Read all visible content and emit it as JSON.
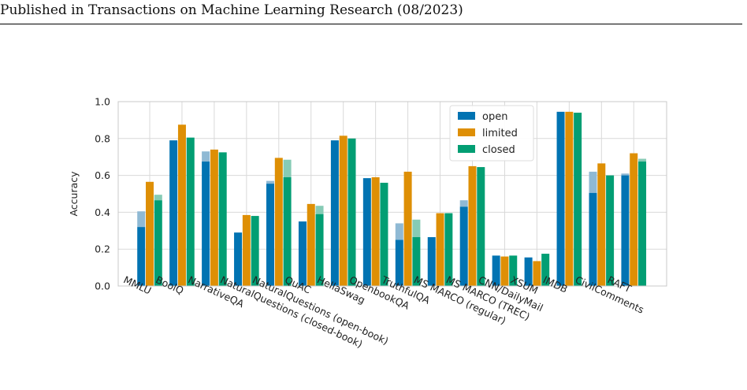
{
  "header": {
    "text": "Published in Transactions on Machine Learning Research (08/2023)"
  },
  "chart_data": {
    "type": "bar",
    "ylabel": "Accuracy",
    "xlabel": "",
    "ylim": [
      0.0,
      1.0
    ],
    "yticks": [
      "0.0",
      "0.2",
      "0.4",
      "0.6",
      "0.8",
      "1.0"
    ],
    "grid": true,
    "legend_position": "top-right",
    "categories": [
      "MMLU",
      "BoolQ",
      "NarrativeQA",
      "NaturalQuestions (closed-book)",
      "NaturalQuestions (open-book)",
      "QuAC",
      "HellaSwag",
      "OpenbookQA",
      "TruthfulQA",
      "MS MARCO (regular)",
      "MS MARCO (TREC)",
      "CNN/DailyMail",
      "XSUM",
      "IMDB",
      "CivilComments",
      "RAFT"
    ],
    "series": [
      {
        "name": "open",
        "color": "#0173b2",
        "light_color": "#8fb9d4",
        "values": [
          0.32,
          0.79,
          0.675,
          0.29,
          0.555,
          0.35,
          0.79,
          0.585,
          0.25,
          0.265,
          0.43,
          0.165,
          0.155,
          0.945,
          0.505,
          0.6
        ],
        "upper_values": [
          0.405,
          0.79,
          0.73,
          0.29,
          0.57,
          0.35,
          0.79,
          0.585,
          0.34,
          0.265,
          0.465,
          0.165,
          0.155,
          0.945,
          0.62,
          0.61
        ]
      },
      {
        "name": "limited",
        "color": "#de8f05",
        "light_color": "#e9c07a",
        "values": [
          0.565,
          0.875,
          0.74,
          0.385,
          0.695,
          0.445,
          0.815,
          0.59,
          0.62,
          0.395,
          0.65,
          0.16,
          0.135,
          0.945,
          0.665,
          0.72
        ],
        "upper_values": [
          0.565,
          0.875,
          0.74,
          0.385,
          0.695,
          0.445,
          0.815,
          0.59,
          0.62,
          0.395,
          0.65,
          0.16,
          0.135,
          0.945,
          0.665,
          0.72
        ]
      },
      {
        "name": "closed",
        "color": "#029e73",
        "light_color": "#86cbb5",
        "values": [
          0.465,
          0.805,
          0.725,
          0.38,
          0.59,
          0.39,
          0.8,
          0.56,
          0.265,
          0.395,
          0.645,
          0.165,
          0.175,
          0.94,
          0.6,
          0.675
        ],
        "upper_values": [
          0.495,
          0.805,
          0.725,
          0.38,
          0.685,
          0.435,
          0.8,
          0.56,
          0.36,
          0.395,
          0.645,
          0.165,
          0.175,
          0.94,
          0.6,
          0.69
        ]
      }
    ]
  }
}
